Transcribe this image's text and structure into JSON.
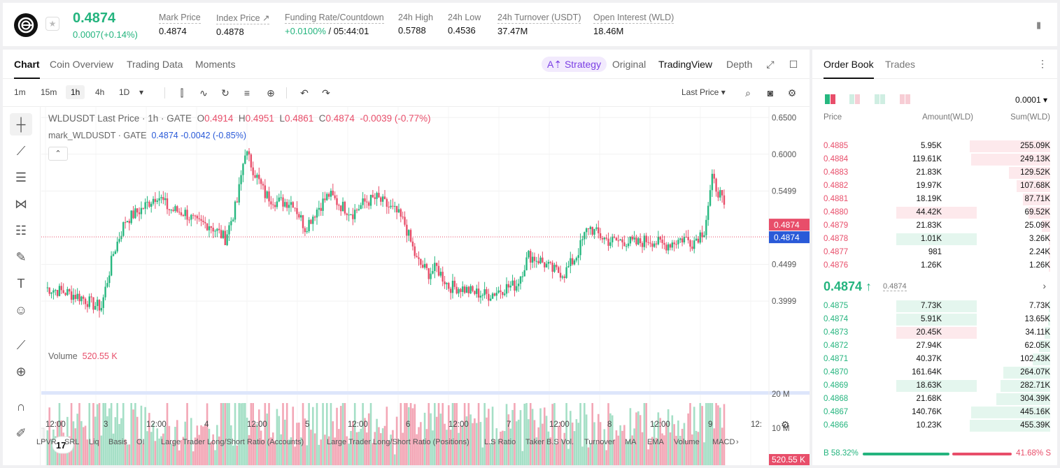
{
  "header": {
    "last_price": "0.4874",
    "last_change": "0.0007(+0.14%)",
    "stats": [
      {
        "label": "Mark Price",
        "value": "0.4874"
      },
      {
        "label": "Index Price ↗",
        "value": "0.4878"
      },
      {
        "label": "Funding Rate/Countdown",
        "value_green": "+0.0100%",
        "value": " / 05:44:01"
      },
      {
        "label": "24h High",
        "value": "0.5788"
      },
      {
        "label": "24h Low",
        "value": "0.4536"
      },
      {
        "label": "24h Turnover (USDT)",
        "value": "37.47M"
      },
      {
        "label": "Open Interest (WLD)",
        "value": "18.46M"
      }
    ]
  },
  "chart_tabs": {
    "chart": "Chart",
    "coin_overview": "Coin Overview",
    "trading_data": "Trading Data",
    "moments": "Moments",
    "strategy": "A⇡ Strategy",
    "original": "Original",
    "tradingview": "TradingView",
    "depth": "Depth"
  },
  "timeframes": [
    "1m",
    "15m",
    "1h",
    "4h",
    "1D"
  ],
  "active_timeframe": "1h",
  "price_type": "Last Price",
  "legend": {
    "title": "WLDUSDT Last Price · 1h · GATE",
    "o_label": "O",
    "o": "0.4914",
    "h_label": "H",
    "h": "0.4951",
    "l_label": "L",
    "l": "0.4861",
    "c_label": "C",
    "c": "0.4874",
    "chg": "-0.0039 (-0.77%)",
    "mark_title": "mark_WLDUSDT · GATE",
    "mark_values": "0.4874 -0.0042 (-0.85%)",
    "volume_label": "Volume",
    "volume_value": "520.55 K"
  },
  "indicators": [
    "LPVR",
    "SRL",
    "Liq",
    "Basis",
    "OI",
    "Large Trader Long/Short Ratio (Accounts)",
    "Large Trader Long/Short Ratio (Positions)",
    "L.S Ratio",
    "Taker B.S Vol.",
    "Turnover",
    "MA",
    "EMA",
    "Volume",
    "MACD"
  ],
  "chart_data": {
    "type": "candlestick",
    "title": "WLDUSDT Last Price · 1h · GATE",
    "price_axis_ticks": [
      "0.6500",
      "0.6000",
      "0.5499",
      "0.4499",
      "0.3999"
    ],
    "volume_axis_ticks": [
      "20 M",
      "10 M"
    ],
    "time_ticks": [
      "12:00",
      "3",
      "12:00",
      "4",
      "12:00",
      "5",
      "12:00",
      "6",
      "12:00",
      "7",
      "12:00",
      "8",
      "12:00",
      "9",
      "12:"
    ],
    "ylim": [
      0.36,
      0.655
    ],
    "last_price_label": "0.4874",
    "mark_price_label": "0.4874",
    "last_volume_label": "520.55 K",
    "up_color": "#26b77f",
    "down_color": "#e84e6a"
  },
  "orderbook": {
    "tabs": [
      "Order Book",
      "Trades"
    ],
    "precision": "0.0001",
    "headers": {
      "price": "Price",
      "amount": "Amount(WLD)",
      "sum": "Sum(WLD)"
    },
    "asks": [
      {
        "price": "0.4885",
        "amount": "5.95K",
        "sum": "255.09K",
        "depth": 1.0,
        "hl": 0
      },
      {
        "price": "0.4884",
        "amount": "119.61K",
        "sum": "249.13K",
        "depth": 0.98,
        "hl": 0
      },
      {
        "price": "0.4883",
        "amount": "21.83K",
        "sum": "129.52K",
        "depth": 0.51,
        "hl": 0
      },
      {
        "price": "0.4882",
        "amount": "19.97K",
        "sum": "107.68K",
        "depth": 0.42,
        "hl": 0
      },
      {
        "price": "0.4881",
        "amount": "18.19K",
        "sum": "87.71K",
        "depth": 0.34,
        "hl": 0
      },
      {
        "price": "0.4880",
        "amount": "44.42K",
        "sum": "69.52K",
        "depth": 0.27,
        "hl": 1
      },
      {
        "price": "0.4879",
        "amount": "21.83K",
        "sum": "25.09K",
        "depth": 0.1,
        "hl": 0
      },
      {
        "price": "0.4878",
        "amount": "1.01K",
        "sum": "3.26K",
        "depth": 0.02,
        "hl": 2
      },
      {
        "price": "0.4877",
        "amount": "981",
        "sum": "2.24K",
        "depth": 0.01,
        "hl": 0
      },
      {
        "price": "0.4876",
        "amount": "1.26K",
        "sum": "1.26K",
        "depth": 0.01,
        "hl": 0
      }
    ],
    "mid_price": "0.4874 ↑",
    "mid_mark": "0.4874",
    "bids": [
      {
        "price": "0.4875",
        "amount": "7.73K",
        "sum": "7.73K",
        "depth": 0.02,
        "hl": 1
      },
      {
        "price": "0.4874",
        "amount": "5.91K",
        "sum": "13.65K",
        "depth": 0.03,
        "hl": 1
      },
      {
        "price": "0.4873",
        "amount": "20.45K",
        "sum": "34.11K",
        "depth": 0.07,
        "hl": 2
      },
      {
        "price": "0.4872",
        "amount": "27.94K",
        "sum": "62.05K",
        "depth": 0.14,
        "hl": 0
      },
      {
        "price": "0.4871",
        "amount": "40.37K",
        "sum": "102.43K",
        "depth": 0.22,
        "hl": 0
      },
      {
        "price": "0.4870",
        "amount": "161.64K",
        "sum": "264.07K",
        "depth": 0.58,
        "hl": 0
      },
      {
        "price": "0.4869",
        "amount": "18.63K",
        "sum": "282.71K",
        "depth": 0.62,
        "hl": 1
      },
      {
        "price": "0.4868",
        "amount": "21.68K",
        "sum": "304.39K",
        "depth": 0.67,
        "hl": 0
      },
      {
        "price": "0.4867",
        "amount": "140.76K",
        "sum": "445.16K",
        "depth": 0.98,
        "hl": 0
      },
      {
        "price": "0.4866",
        "amount": "10.23K",
        "sum": "455.39K",
        "depth": 1.0,
        "hl": 0
      }
    ],
    "buy_ratio": "B 58.32%",
    "sell_ratio": "41.68% S"
  }
}
